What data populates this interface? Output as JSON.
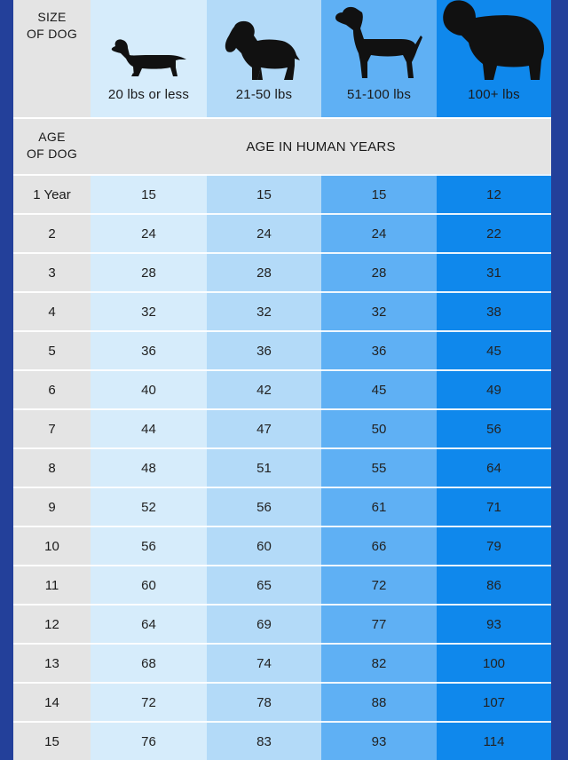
{
  "header": {
    "size_label_line1": "SIZE",
    "size_label_line2": "OF DOG",
    "age_label_line1": "AGE",
    "age_label_line2": "OF DOG",
    "human_years_label": "AGE IN HUMAN YEARS"
  },
  "icons": [
    "dachshund-icon",
    "spaniel-icon",
    "pointer-icon",
    "newfoundland-icon"
  ],
  "colors": {
    "frame": "#23409a",
    "label_gray": "#e4e4e4",
    "column_1": "#d6ecfb",
    "column_2": "#b3daf8",
    "column_3": "#5fb0f4",
    "column_4": "#0f88ec"
  },
  "chart_data": {
    "type": "table",
    "columns": [
      "20 lbs or less",
      "21-50 lbs",
      "51-100 lbs",
      "100+ lbs"
    ],
    "row_labels": [
      "1 Year",
      "2",
      "3",
      "4",
      "5",
      "6",
      "7",
      "8",
      "9",
      "10",
      "11",
      "12",
      "13",
      "14",
      "15"
    ],
    "rows": [
      [
        15,
        15,
        15,
        12
      ],
      [
        24,
        24,
        24,
        22
      ],
      [
        28,
        28,
        28,
        31
      ],
      [
        32,
        32,
        32,
        38
      ],
      [
        36,
        36,
        36,
        45
      ],
      [
        40,
        42,
        45,
        49
      ],
      [
        44,
        47,
        50,
        56
      ],
      [
        48,
        51,
        55,
        64
      ],
      [
        52,
        56,
        61,
        71
      ],
      [
        56,
        60,
        66,
        79
      ],
      [
        60,
        65,
        72,
        86
      ],
      [
        64,
        69,
        77,
        93
      ],
      [
        68,
        74,
        82,
        100
      ],
      [
        72,
        78,
        88,
        107
      ],
      [
        76,
        83,
        93,
        114
      ]
    ]
  }
}
